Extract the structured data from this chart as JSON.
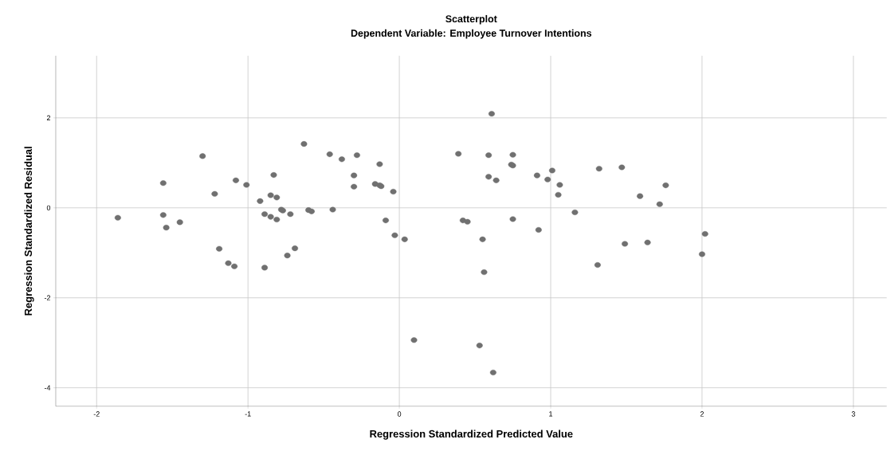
{
  "chart_data": {
    "type": "scatter",
    "title": "Scatterplot",
    "subtitle": "Dependent Variable: Employee Turnover Intentions",
    "xlabel": "Regression Standardized Predicted Value",
    "ylabel": "Regression Standardized Residual",
    "xlim": [
      -2.27,
      3.22
    ],
    "ylim": [
      -4.41,
      3.38
    ],
    "xticks": [
      -2,
      -1,
      0,
      1,
      2,
      3
    ],
    "yticks": [
      -4,
      -2,
      0,
      2
    ],
    "grid": true,
    "marker": "circle",
    "series": [
      {
        "color": "#707070",
        "x": [
          -1.86,
          -1.56,
          -1.56,
          -1.54,
          -1.45,
          -1.3,
          -1.22,
          -1.19,
          -1.13,
          -1.09,
          -1.08,
          -1.01,
          -0.92,
          -0.89,
          -0.89,
          -0.85,
          -0.83,
          -0.85,
          -0.81,
          -0.81,
          -0.78,
          -0.77,
          -0.74,
          -0.72,
          -0.69,
          -0.63,
          -0.6,
          -0.58,
          -0.46,
          -0.44,
          -0.38,
          -0.3,
          -0.3,
          -0.28,
          -0.16,
          -0.13,
          -0.13,
          -0.12,
          -0.09,
          -0.04,
          -0.03,
          0.035,
          0.61,
          0.39,
          0.59,
          0.75,
          0.74,
          0.75,
          0.59,
          0.64,
          0.91,
          1.01,
          0.98,
          1.06,
          1.05,
          1.16,
          1.32,
          1.47,
          1.59,
          1.76,
          1.72,
          0.42,
          0.45,
          0.75,
          0.92,
          0.55,
          1.49,
          1.64,
          2.02,
          2.0,
          1.31,
          0.56,
          0.097,
          0.53,
          0.62
        ],
        "values": [
          -0.22,
          0.55,
          -0.16,
          -0.44,
          -0.32,
          1.15,
          0.31,
          -0.91,
          -1.23,
          -1.3,
          0.61,
          0.51,
          0.15,
          -0.14,
          -1.33,
          0.28,
          0.73,
          -0.2,
          0.23,
          -0.26,
          -0.04,
          -0.06,
          -1.06,
          -0.14,
          -0.9,
          1.42,
          -0.05,
          -0.08,
          1.19,
          -0.04,
          1.08,
          0.72,
          0.47,
          1.17,
          0.53,
          0.97,
          0.5,
          0.48,
          -0.28,
          0.36,
          -0.61,
          -0.7,
          2.09,
          1.2,
          1.17,
          1.18,
          0.96,
          0.94,
          0.69,
          0.61,
          0.72,
          0.83,
          0.63,
          0.51,
          0.29,
          -0.1,
          0.87,
          0.9,
          0.26,
          0.5,
          0.08,
          -0.28,
          -0.31,
          -0.25,
          -0.49,
          -0.7,
          -0.8,
          -0.77,
          -0.58,
          -1.03,
          -1.27,
          -1.43,
          -2.94,
          -3.06,
          -3.66
        ]
      }
    ]
  }
}
